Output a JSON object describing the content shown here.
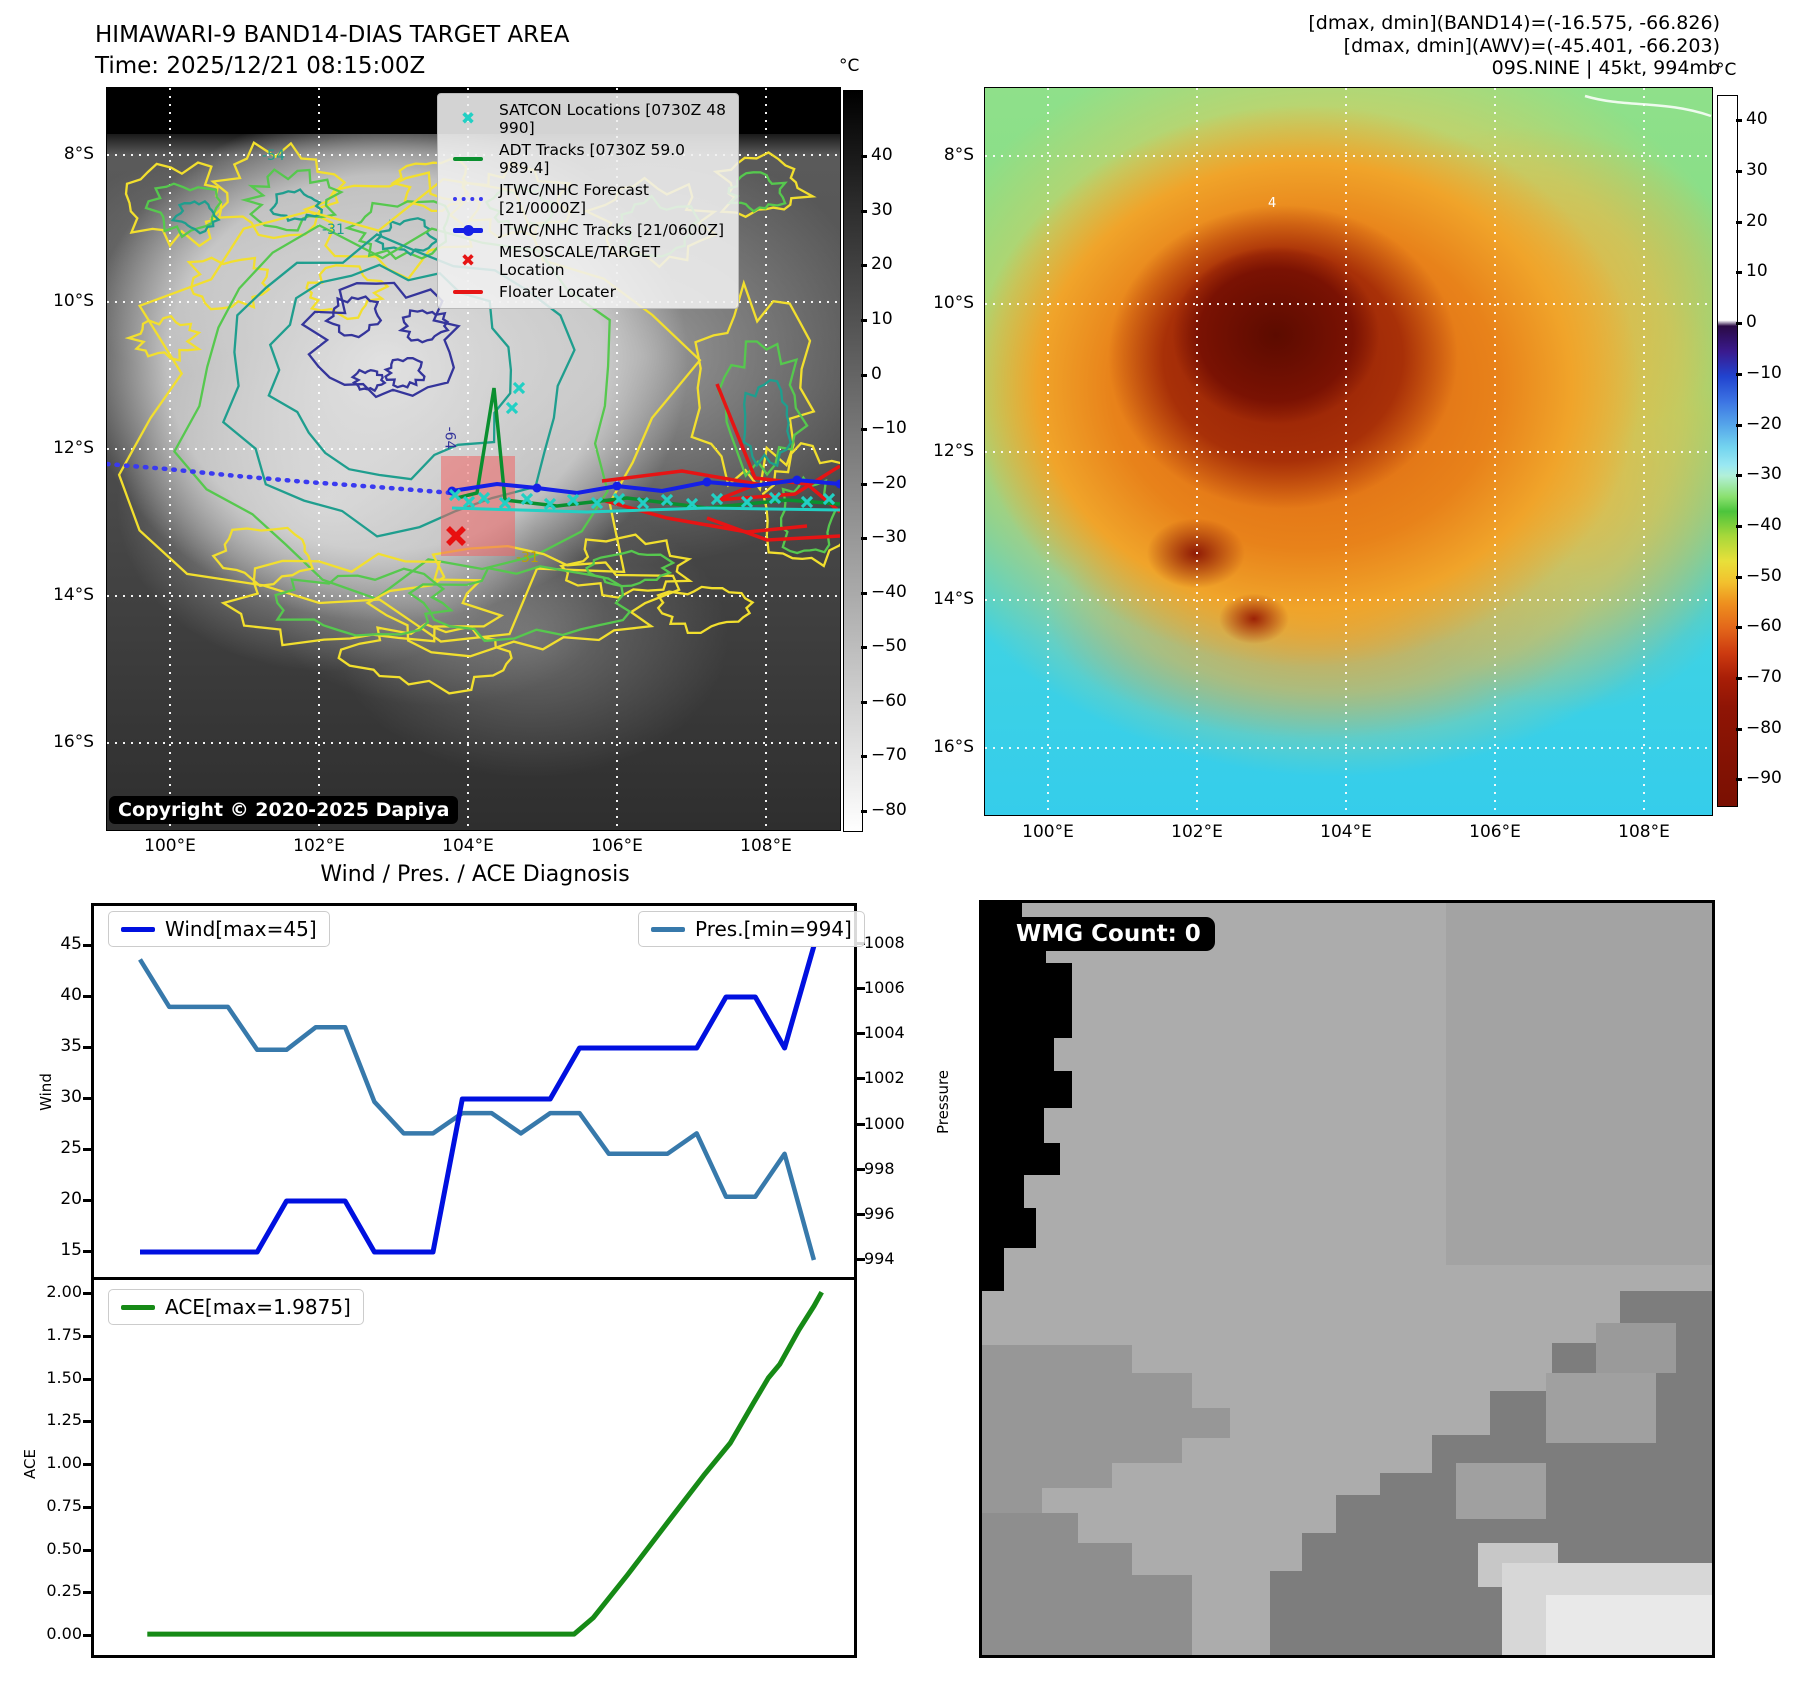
{
  "band14": {
    "title": "HIMAWARI-9 BAND14-DIAS TARGET AREA",
    "time_line": "Time: 2025/12/21 08:15:00Z",
    "copyright": "Copyright © 2020-2025 Dapiya",
    "legend": [
      {
        "symbol": "satcon-x",
        "color": "#22d0c4",
        "label": "SATCON Locations [0730Z 48 990]"
      },
      {
        "symbol": "line",
        "color": "#0a8f2f",
        "label": "ADT Tracks [0730Z 59.0 989.4]"
      },
      {
        "symbol": "dotted",
        "color": "#3a3af0",
        "label": "JTWC/NHC Forecast [21/0000Z]"
      },
      {
        "symbol": "line-dot",
        "color": "#1520e6",
        "label": "JTWC/NHC Tracks [21/0600Z]"
      },
      {
        "symbol": "meso-x",
        "color": "#e61414",
        "label": "MESOSCALE/TARGET Location"
      },
      {
        "symbol": "line",
        "color": "#e61414",
        "label": "Floater Locater"
      }
    ],
    "colorbar": {
      "unit": "°C",
      "ticks": [
        "40",
        "30",
        "20",
        "10",
        "0",
        "−10",
        "−20",
        "−30",
        "−40",
        "−50",
        "−60",
        "−70",
        "−80"
      ]
    },
    "lat_labels": [
      "8°S",
      "10°S",
      "12°S",
      "14°S",
      "16°S"
    ],
    "lon_labels": [
      "100°E",
      "102°E",
      "104°E",
      "106°E",
      "108°E"
    ],
    "contour_labels": [
      "-54",
      "-31",
      "-64",
      "-31"
    ]
  },
  "awv": {
    "header_lines": [
      "[dmax, dmin](BAND14)=(-16.575, -66.826)",
      "[dmax, dmin](AWV)=(-45.401, -66.203)",
      "09S.NINE | 45kt, 994mb"
    ],
    "colorbar": {
      "unit": "°C",
      "ticks": [
        "40",
        "30",
        "20",
        "10",
        "0",
        "−10",
        "−20",
        "−30",
        "−40",
        "−50",
        "−60",
        "−70",
        "−80",
        "−90"
      ]
    },
    "lat_labels": [
      "8°S",
      "10°S",
      "12°S",
      "14°S",
      "16°S"
    ],
    "lon_labels": [
      "100°E",
      "102°E",
      "104°E",
      "106°E",
      "108°E"
    ],
    "contour_labels": [
      "4"
    ]
  },
  "diagnosis": {
    "title": "Wind / Pres. / ACE Diagnosis",
    "wind_legend": "Wind[max=45]",
    "pres_legend": "Pres.[min=994]",
    "ace_legend": "ACE[max=1.9875]",
    "wind_axis": {
      "label": "Wind",
      "ticks": [
        "45",
        "40",
        "35",
        "30",
        "25",
        "20",
        "15"
      ]
    },
    "pres_axis": {
      "label": "Pressure",
      "ticks": [
        "1008",
        "1006",
        "1004",
        "1002",
        "1000",
        "998",
        "996",
        "994"
      ]
    },
    "ace_axis": {
      "label": "ACE",
      "ticks": [
        "2.00",
        "1.75",
        "1.50",
        "1.25",
        "1.00",
        "0.75",
        "0.50",
        "0.25",
        "0.00"
      ]
    }
  },
  "wmg": {
    "badge": "WMG Count: 0"
  },
  "colors": {
    "wind": "#0010e0",
    "pressure": "#3779ab",
    "ace": "#168a16",
    "grid": "#ffffff",
    "contour_yellow": "#f2df2e",
    "contour_green": "#56c84e",
    "contour_teal": "#1f9e8e",
    "contour_navy": "#35359b",
    "track_blue": "#1520e6",
    "forecast_blue": "#3a3af0",
    "satcon_cyan": "#22d0c4",
    "floater_red": "#e61414",
    "target_red": "#e84040"
  },
  "chart_data": [
    {
      "type": "line",
      "title": "Wind / Pres. / ACE Diagnosis",
      "x": [
        1,
        2,
        3,
        4,
        5,
        6,
        7,
        8,
        9,
        10,
        11,
        12,
        13,
        14,
        15,
        16,
        17,
        18,
        19,
        20,
        21,
        22,
        23,
        24
      ],
      "xlabel": "",
      "series": [
        {
          "name": "Wind[max=45]",
          "yaxis": "left",
          "color": "#0010e0",
          "values": [
            15,
            15,
            15,
            15,
            15,
            20,
            20,
            20,
            15,
            15,
            15,
            30,
            30,
            30,
            30,
            35,
            35,
            35,
            35,
            35,
            40,
            40,
            35,
            45
          ]
        },
        {
          "name": "Pres.[min=994]",
          "yaxis": "right",
          "color": "#3779ab",
          "values": [
            1007.3,
            1005.2,
            1005.2,
            1005.2,
            1003.3,
            1003.3,
            1004.3,
            1004.3,
            1001,
            999.6,
            999.6,
            1000.5,
            1000.5,
            999.6,
            1000.5,
            1000.5,
            998.7,
            998.7,
            998.7,
            999.6,
            996.8,
            996.8,
            998.7,
            994
          ]
        }
      ],
      "ylabel_left": "Wind",
      "ylim_left": [
        13.4,
        46.6
      ],
      "yticks_left": [
        45,
        40,
        35,
        30,
        25,
        20,
        15
      ],
      "ylabel_right": "Pressure",
      "ylim_right": [
        993.3,
        1008.7
      ],
      "yticks_right": [
        1008,
        1006,
        1004,
        1002,
        1000,
        998,
        996,
        994
      ],
      "grid": false,
      "legend_position": "upper-left and upper-right"
    },
    {
      "type": "line",
      "title": "ACE",
      "series": [
        {
          "name": "ACE[max=1.9875]",
          "color": "#168a16",
          "x_units": "fraction-of-width",
          "points": [
            [
              0.07,
              0.005
            ],
            [
              0.63,
              0.005
            ],
            [
              0.655,
              0.1
            ],
            [
              0.7,
              0.35
            ],
            [
              0.755,
              0.67
            ],
            [
              0.8,
              0.93
            ],
            [
              0.835,
              1.12
            ],
            [
              0.865,
              1.35
            ],
            [
              0.885,
              1.5
            ],
            [
              0.9,
              1.58
            ],
            [
              0.925,
              1.78
            ],
            [
              0.945,
              1.92
            ],
            [
              0.955,
              2.0
            ]
          ]
        }
      ],
      "ylabel": "ACE",
      "ylim": [
        -0.06,
        2.06
      ],
      "yticks": [
        2.0,
        1.75,
        1.5,
        1.25,
        1.0,
        0.75,
        0.5,
        0.25,
        0.0
      ],
      "grid": false,
      "legend_position": "upper-left"
    }
  ]
}
